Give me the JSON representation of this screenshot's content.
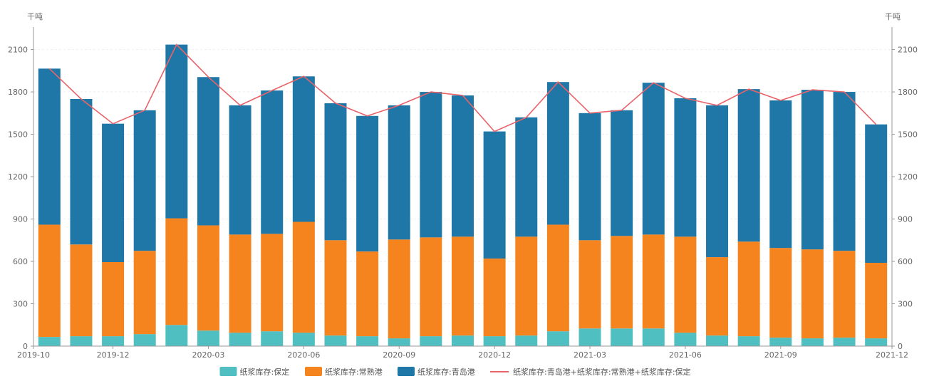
{
  "chart_data": {
    "type": "bar",
    "stacked": true,
    "unit_left": "千吨",
    "unit_right": "千吨",
    "ylim": [
      0,
      2250
    ],
    "yticks": [
      0,
      300,
      600,
      900,
      1200,
      1500,
      1800,
      2100
    ],
    "x_tick_labels": [
      "2019-10",
      "2019-12",
      "2020-03",
      "2020-06",
      "2020-09",
      "2020-12",
      "2021-03",
      "2021-06",
      "2021-09",
      "2021-12"
    ],
    "categories": [
      "2019-10",
      "2019-11",
      "2019-12",
      "2020-01",
      "2020-02",
      "2020-03",
      "2020-04",
      "2020-05",
      "2020-06",
      "2020-07",
      "2020-08",
      "2020-09",
      "2020-10",
      "2020-11",
      "2020-12",
      "2021-01",
      "2021-02",
      "2021-03",
      "2021-04",
      "2021-05",
      "2021-06",
      "2021-07",
      "2021-08",
      "2021-09",
      "2021-10",
      "2021-11",
      "2021-12"
    ],
    "series": [
      {
        "name": "纸浆库存:保定",
        "color": "#4fbfc1",
        "values": [
          65,
          70,
          70,
          85,
          150,
          110,
          95,
          105,
          95,
          75,
          70,
          55,
          70,
          75,
          70,
          75,
          105,
          125,
          125,
          125,
          95,
          75,
          70,
          60,
          55,
          60,
          55
        ]
      },
      {
        "name": "纸浆库存:常熟港",
        "color": "#f5841f",
        "values": [
          795,
          650,
          525,
          590,
          755,
          745,
          695,
          690,
          785,
          675,
          600,
          700,
          700,
          700,
          550,
          700,
          755,
          625,
          655,
          665,
          680,
          555,
          670,
          635,
          630,
          615,
          535
        ]
      },
      {
        "name": "纸浆库存:青岛港",
        "color": "#1f77a8",
        "values": [
          1105,
          1030,
          980,
          995,
          1230,
          1050,
          915,
          1015,
          1030,
          970,
          960,
          950,
          1030,
          1000,
          900,
          845,
          1010,
          900,
          890,
          1075,
          980,
          1075,
          1080,
          1045,
          1130,
          1125,
          980
        ]
      },
      {
        "name": "纸浆库存:青岛港+纸浆库存:常熟港+纸浆库存:保定",
        "type": "line",
        "color": "#e8636a",
        "values": [
          1965,
          1750,
          1575,
          1670,
          2135,
          1905,
          1705,
          1810,
          1910,
          1720,
          1630,
          1705,
          1800,
          1775,
          1520,
          1620,
          1870,
          1650,
          1670,
          1865,
          1755,
          1705,
          1820,
          1740,
          1815,
          1800,
          1570
        ]
      }
    ]
  }
}
